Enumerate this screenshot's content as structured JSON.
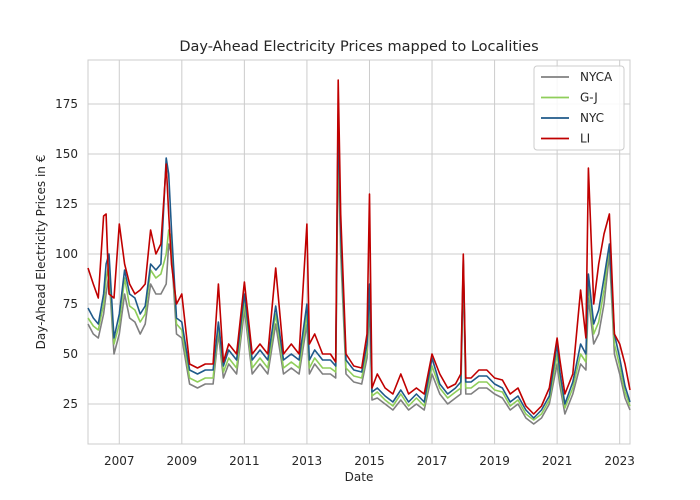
{
  "chart_data": {
    "type": "line",
    "title": "Day-Ahead Electricity Prices mapped to Localities",
    "xlabel": "Date",
    "ylabel": "Day-Ahead Electricity Prices in €",
    "xlim": [
      2006.0,
      2023.33
    ],
    "ylim": [
      5,
      197
    ],
    "x_ticks": [
      2007,
      2009,
      2011,
      2013,
      2015,
      2017,
      2019,
      2021,
      2023
    ],
    "y_ticks": [
      25,
      50,
      75,
      100,
      125,
      150,
      175
    ],
    "grid": true,
    "legend_position": "top-right",
    "series": [
      {
        "name": "NYCA",
        "color": "#808080",
        "x": [
          2006.0,
          2006.17,
          2006.33,
          2006.5,
          2006.58,
          2006.67,
          2006.83,
          2007.0,
          2007.17,
          2007.33,
          2007.5,
          2007.67,
          2007.83,
          2008.0,
          2008.17,
          2008.33,
          2008.5,
          2008.58,
          2008.67,
          2008.83,
          2009.0,
          2009.25,
          2009.5,
          2009.75,
          2010.0,
          2010.17,
          2010.33,
          2010.5,
          2010.75,
          2011.0,
          2011.25,
          2011.5,
          2011.75,
          2012.0,
          2012.25,
          2012.5,
          2012.75,
          2013.0,
          2013.08,
          2013.25,
          2013.5,
          2013.75,
          2013.92,
          2014.0,
          2014.08,
          2014.25,
          2014.5,
          2014.75,
          2014.92,
          2015.0,
          2015.08,
          2015.25,
          2015.5,
          2015.75,
          2016.0,
          2016.25,
          2016.5,
          2016.75,
          2017.0,
          2017.25,
          2017.5,
          2017.75,
          2017.92,
          2018.0,
          2018.08,
          2018.25,
          2018.5,
          2018.75,
          2019.0,
          2019.25,
          2019.5,
          2019.75,
          2020.0,
          2020.25,
          2020.5,
          2020.75,
          2021.0,
          2021.08,
          2021.25,
          2021.5,
          2021.75,
          2021.92,
          2022.0,
          2022.17,
          2022.33,
          2022.5,
          2022.67,
          2022.83,
          2023.0,
          2023.17,
          2023.33
        ],
        "values": [
          65,
          60,
          58,
          70,
          80,
          90,
          50,
          60,
          80,
          68,
          66,
          60,
          65,
          85,
          80,
          80,
          85,
          105,
          100,
          60,
          58,
          35,
          33,
          35,
          35,
          60,
          38,
          45,
          40,
          72,
          40,
          45,
          40,
          65,
          40,
          43,
          40,
          65,
          40,
          45,
          40,
          40,
          38,
          155,
          100,
          40,
          36,
          35,
          48,
          75,
          27,
          28,
          25,
          22,
          27,
          22,
          25,
          22,
          40,
          30,
          25,
          28,
          30,
          90,
          30,
          30,
          33,
          33,
          30,
          28,
          22,
          25,
          18,
          15,
          18,
          25,
          45,
          35,
          20,
          30,
          45,
          42,
          78,
          55,
          60,
          75,
          100,
          50,
          40,
          28,
          22
        ]
      },
      {
        "name": "G-J",
        "color": "#8fce5a",
        "x": [
          2006.0,
          2006.17,
          2006.33,
          2006.5,
          2006.58,
          2006.67,
          2006.83,
          2007.0,
          2007.17,
          2007.33,
          2007.5,
          2007.67,
          2007.83,
          2008.0,
          2008.17,
          2008.33,
          2008.5,
          2008.58,
          2008.67,
          2008.83,
          2009.0,
          2009.25,
          2009.5,
          2009.75,
          2010.0,
          2010.17,
          2010.33,
          2010.5,
          2010.75,
          2011.0,
          2011.25,
          2011.5,
          2011.75,
          2012.0,
          2012.25,
          2012.5,
          2012.75,
          2013.0,
          2013.08,
          2013.25,
          2013.5,
          2013.75,
          2013.92,
          2014.0,
          2014.08,
          2014.25,
          2014.5,
          2014.75,
          2014.92,
          2015.0,
          2015.08,
          2015.25,
          2015.5,
          2015.75,
          2016.0,
          2016.25,
          2016.5,
          2016.75,
          2017.0,
          2017.25,
          2017.5,
          2017.75,
          2017.92,
          2018.0,
          2018.08,
          2018.25,
          2018.5,
          2018.75,
          2019.0,
          2019.25,
          2019.5,
          2019.75,
          2020.0,
          2020.25,
          2020.5,
          2020.75,
          2021.0,
          2021.08,
          2021.25,
          2021.5,
          2021.75,
          2021.92,
          2022.0,
          2022.17,
          2022.33,
          2022.5,
          2022.67,
          2022.83,
          2023.0,
          2023.17,
          2023.33
        ],
        "values": [
          68,
          64,
          62,
          75,
          88,
          95,
          55,
          65,
          88,
          74,
          72,
          66,
          70,
          92,
          88,
          90,
          100,
          112,
          108,
          65,
          62,
          38,
          36,
          38,
          38,
          64,
          41,
          48,
          43,
          76,
          43,
          48,
          43,
          70,
          43,
          46,
          43,
          70,
          43,
          48,
          43,
          43,
          41,
          162,
          105,
          43,
          39,
          38,
          51,
          80,
          29,
          31,
          27,
          24,
          30,
          24,
          28,
          24,
          44,
          33,
          28,
          31,
          33,
          95,
          33,
          33,
          36,
          36,
          32,
          31,
          24,
          27,
          20,
          17,
          20,
          27,
          50,
          39,
          23,
          33,
          50,
          46,
          85,
          60,
          66,
          82,
          104,
          55,
          44,
          31,
          24
        ]
      },
      {
        "name": "NYC",
        "color": "#1f5a8a",
        "x": [
          2006.0,
          2006.17,
          2006.33,
          2006.5,
          2006.58,
          2006.67,
          2006.83,
          2007.0,
          2007.17,
          2007.33,
          2007.5,
          2007.67,
          2007.83,
          2008.0,
          2008.17,
          2008.33,
          2008.5,
          2008.58,
          2008.67,
          2008.83,
          2009.0,
          2009.25,
          2009.5,
          2009.75,
          2010.0,
          2010.17,
          2010.33,
          2010.5,
          2010.75,
          2011.0,
          2011.25,
          2011.5,
          2011.75,
          2012.0,
          2012.25,
          2012.5,
          2012.75,
          2013.0,
          2013.08,
          2013.25,
          2013.5,
          2013.75,
          2013.92,
          2014.0,
          2014.08,
          2014.25,
          2014.5,
          2014.75,
          2014.92,
          2015.0,
          2015.08,
          2015.25,
          2015.5,
          2015.75,
          2016.0,
          2016.25,
          2016.5,
          2016.75,
          2017.0,
          2017.25,
          2017.5,
          2017.75,
          2017.92,
          2018.0,
          2018.08,
          2018.25,
          2018.5,
          2018.75,
          2019.0,
          2019.25,
          2019.5,
          2019.75,
          2020.0,
          2020.25,
          2020.5,
          2020.75,
          2021.0,
          2021.08,
          2021.25,
          2021.5,
          2021.75,
          2021.92,
          2022.0,
          2022.17,
          2022.33,
          2022.5,
          2022.67,
          2022.83,
          2023.0,
          2023.17,
          2023.33
        ],
        "values": [
          73,
          68,
          65,
          80,
          95,
          100,
          58,
          70,
          92,
          80,
          78,
          70,
          74,
          95,
          92,
          95,
          148,
          140,
          112,
          68,
          66,
          42,
          40,
          42,
          42,
          66,
          44,
          52,
          47,
          80,
          47,
          52,
          47,
          74,
          47,
          50,
          47,
          75,
          47,
          52,
          47,
          47,
          44,
          170,
          110,
          47,
          42,
          41,
          55,
          85,
          31,
          33,
          29,
          26,
          32,
          26,
          30,
          26,
          48,
          35,
          30,
          33,
          36,
          97,
          36,
          36,
          39,
          39,
          35,
          33,
          26,
          29,
          22,
          18,
          22,
          29,
          55,
          42,
          25,
          36,
          55,
          50,
          90,
          65,
          72,
          88,
          105,
          60,
          48,
          34,
          26
        ]
      },
      {
        "name": "LI",
        "color": "#c00000",
        "x": [
          2006.0,
          2006.17,
          2006.33,
          2006.5,
          2006.58,
          2006.67,
          2006.83,
          2007.0,
          2007.17,
          2007.33,
          2007.5,
          2007.67,
          2007.83,
          2008.0,
          2008.17,
          2008.33,
          2008.5,
          2008.58,
          2008.67,
          2008.83,
          2009.0,
          2009.25,
          2009.5,
          2009.75,
          2010.0,
          2010.17,
          2010.33,
          2010.5,
          2010.75,
          2011.0,
          2011.25,
          2011.5,
          2011.75,
          2012.0,
          2012.25,
          2012.5,
          2012.75,
          2013.0,
          2013.08,
          2013.25,
          2013.5,
          2013.75,
          2013.92,
          2014.0,
          2014.08,
          2014.25,
          2014.5,
          2014.75,
          2014.92,
          2015.0,
          2015.08,
          2015.25,
          2015.5,
          2015.75,
          2016.0,
          2016.25,
          2016.5,
          2016.75,
          2017.0,
          2017.25,
          2017.5,
          2017.75,
          2017.92,
          2018.0,
          2018.08,
          2018.25,
          2018.5,
          2018.75,
          2019.0,
          2019.25,
          2019.5,
          2019.75,
          2020.0,
          2020.25,
          2020.5,
          2020.75,
          2021.0,
          2021.08,
          2021.25,
          2021.5,
          2021.75,
          2021.92,
          2022.0,
          2022.17,
          2022.33,
          2022.5,
          2022.67,
          2022.83,
          2023.0,
          2023.17,
          2023.33
        ],
        "values": [
          93,
          85,
          78,
          119,
          120,
          80,
          78,
          115,
          95,
          85,
          80,
          82,
          85,
          112,
          100,
          105,
          145,
          120,
          95,
          75,
          80,
          45,
          43,
          45,
          45,
          85,
          46,
          55,
          50,
          86,
          50,
          55,
          50,
          93,
          50,
          55,
          50,
          115,
          55,
          60,
          50,
          50,
          46,
          187,
          120,
          50,
          44,
          43,
          60,
          130,
          33,
          40,
          33,
          30,
          40,
          30,
          33,
          30,
          50,
          40,
          33,
          35,
          40,
          100,
          38,
          38,
          42,
          42,
          38,
          37,
          30,
          33,
          24,
          20,
          24,
          33,
          58,
          48,
          30,
          40,
          82,
          58,
          143,
          75,
          95,
          110,
          120,
          60,
          55,
          45,
          32
        ]
      }
    ]
  }
}
